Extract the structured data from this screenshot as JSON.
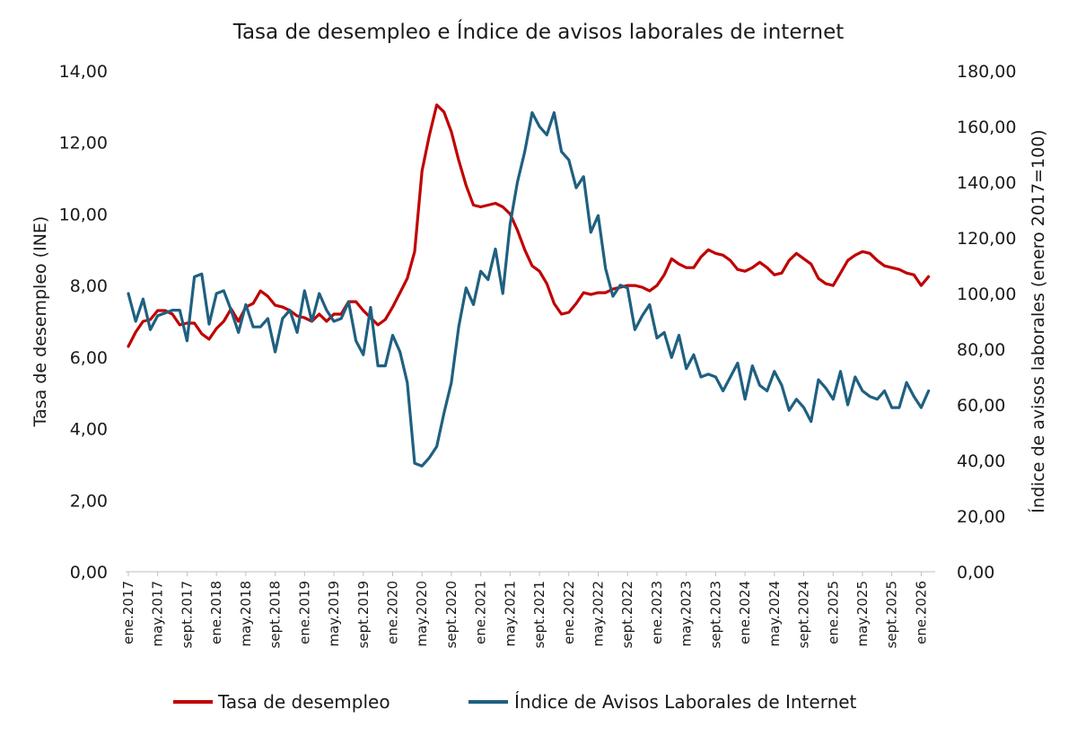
{
  "chart_data": {
    "type": "line",
    "title": "Tasa de desempleo e Índice de avisos laborales de internet",
    "ylabel_left": "Tasa de desempleo (INE)",
    "ylabel_right": "Índice de avisos laborales (enero 2017=100)",
    "ylim_left": [
      0,
      14
    ],
    "ylim_right": [
      0,
      180
    ],
    "yticks_left": [
      "0,00",
      "2,00",
      "4,00",
      "6,00",
      "8,00",
      "10,00",
      "12,00",
      "14,00"
    ],
    "yticks_right": [
      "0,00",
      "20,00",
      "40,00",
      "60,00",
      "80,00",
      "100,00",
      "120,00",
      "140,00",
      "160,00",
      "180,00"
    ],
    "grid": false,
    "legend_position": "bottom",
    "x_start": "ene.2017",
    "x_tick_labels": [
      "ene.2017",
      "may.2017",
      "sept.2017",
      "ene.2018",
      "may.2018",
      "sept.2018",
      "ene.2019",
      "may.2019",
      "sept.2019",
      "ene.2020",
      "may.2020",
      "sept.2020",
      "ene.2021",
      "may.2021",
      "sept.2021",
      "ene.2022",
      "may.2022",
      "sept.2022",
      "ene.2023",
      "may.2023",
      "sept.2023",
      "ene.2024",
      "may.2024",
      "sept.2024",
      "ene.2025",
      "may.2025",
      "sept.2025",
      "ene.2026"
    ],
    "series": [
      {
        "name": "Tasa de desempleo",
        "axis": "left",
        "color": "#c00000",
        "values": [
          6.3,
          6.7,
          7.0,
          7.05,
          7.3,
          7.3,
          7.2,
          6.9,
          6.95,
          6.95,
          6.65,
          6.5,
          6.8,
          7.0,
          7.35,
          7.0,
          7.4,
          7.5,
          7.85,
          7.7,
          7.45,
          7.4,
          7.3,
          7.15,
          7.1,
          7.0,
          7.2,
          7.0,
          7.2,
          7.2,
          7.55,
          7.55,
          7.3,
          7.1,
          6.9,
          7.05,
          7.4,
          7.8,
          8.2,
          8.95,
          11.2,
          12.2,
          13.05,
          12.85,
          12.3,
          11.5,
          10.8,
          10.25,
          10.2,
          10.25,
          10.3,
          10.2,
          10.0,
          9.55,
          9.0,
          8.55,
          8.4,
          8.05,
          7.5,
          7.2,
          7.25,
          7.5,
          7.8,
          7.75,
          7.8,
          7.8,
          7.9,
          7.95,
          8.0,
          8.0,
          7.95,
          7.85,
          8.0,
          8.3,
          8.75,
          8.6,
          8.5,
          8.5,
          8.8,
          9.0,
          8.9,
          8.85,
          8.7,
          8.45,
          8.4,
          8.5,
          8.65,
          8.5,
          8.3,
          8.35,
          8.7,
          8.9,
          8.75,
          8.6,
          8.2,
          8.05,
          8.0,
          8.35,
          8.7,
          8.85,
          8.95,
          8.9,
          8.7,
          8.55,
          8.5,
          8.45,
          8.35,
          8.3,
          8.0,
          8.25
        ]
      },
      {
        "name": "Índice de Avisos Laborales de Internet",
        "axis": "right",
        "color": "#1f6080",
        "values": [
          100,
          90,
          98,
          87,
          92,
          93,
          94,
          94,
          83,
          106,
          107,
          89,
          100,
          101,
          94,
          86,
          96,
          88,
          88,
          91,
          79,
          91,
          94,
          86,
          101,
          90,
          100,
          94,
          90,
          91,
          97,
          83,
          78,
          95,
          74,
          74,
          85,
          79,
          68,
          39,
          38,
          41,
          45,
          57,
          68,
          88,
          102,
          96,
          108,
          105,
          116,
          100,
          125,
          140,
          151,
          165,
          160,
          157,
          165,
          151,
          148,
          138,
          142,
          122,
          128,
          109,
          99,
          103,
          102,
          87,
          92,
          96,
          84,
          86,
          77,
          85,
          73,
          78,
          70,
          71,
          70,
          65,
          70,
          75,
          62,
          74,
          67,
          65,
          72,
          67,
          58,
          62,
          59,
          54,
          69,
          66,
          62,
          72,
          60,
          70,
          65,
          63,
          62,
          65,
          59,
          59,
          68,
          63,
          59,
          65
        ]
      }
    ]
  }
}
